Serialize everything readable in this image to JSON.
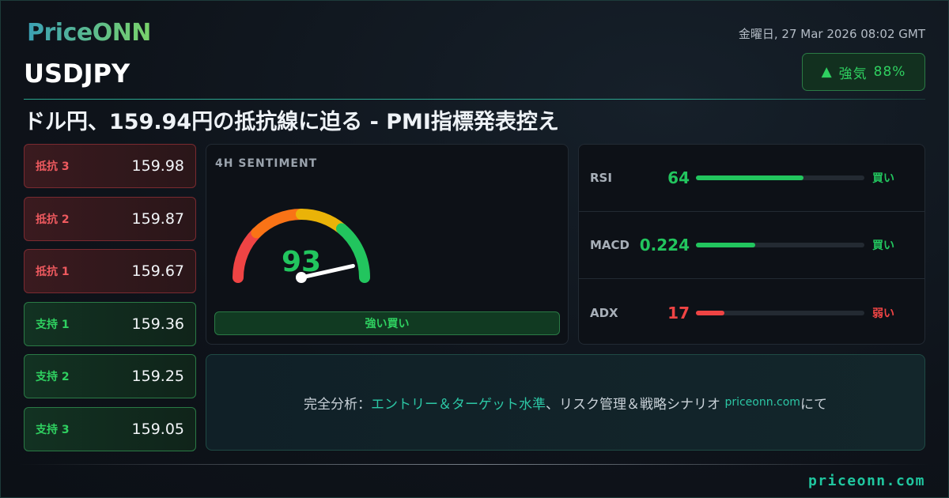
{
  "brand": {
    "logo": "PriceONN",
    "footer_site": "priceonn.com"
  },
  "header": {
    "symbol": "USDJPY",
    "datetime": "金曜日, 27 Mar 2026 08:02 GMT",
    "bias": {
      "icon": "triangle-up-icon",
      "label": "強気",
      "percent": "88%"
    },
    "headline": "ドル円、159.94円の抵抗線に迫る - PMI指標発表控え"
  },
  "levels": [
    {
      "type": "resistance",
      "label": "抵抗 3",
      "value": "159.98"
    },
    {
      "type": "resistance",
      "label": "抵抗 2",
      "value": "159.87"
    },
    {
      "type": "resistance",
      "label": "抵抗 1",
      "value": "159.67"
    },
    {
      "type": "support",
      "label": "支持 1",
      "value": "159.36"
    },
    {
      "type": "support",
      "label": "支持 2",
      "value": "159.25"
    },
    {
      "type": "support",
      "label": "支持 3",
      "value": "159.05"
    }
  ],
  "sentiment": {
    "title": "4H SENTIMENT",
    "score": "93",
    "score_value": 93,
    "verdict": "強い買い"
  },
  "indicators": [
    {
      "name": "RSI",
      "value": "64",
      "fill_percent": 64,
      "signal": "買い",
      "color": "#22c55e"
    },
    {
      "name": "MACD",
      "value": "0.224",
      "fill_percent": 35,
      "signal": "買い",
      "color": "#22c55e"
    },
    {
      "name": "ADX",
      "value": "17",
      "fill_percent": 17,
      "signal": "弱い",
      "color": "#ef4444"
    }
  ],
  "cta": {
    "prefix": "完全分析：",
    "highlight": "エントリー＆ターゲット水準",
    "middle": "、リスク管理＆戦略シナリオ ",
    "site": "priceonn.com",
    "suffix": "にて"
  },
  "colors": {
    "bull": "#22c55e",
    "bear": "#ef4444",
    "accent": "#20c7a0"
  }
}
